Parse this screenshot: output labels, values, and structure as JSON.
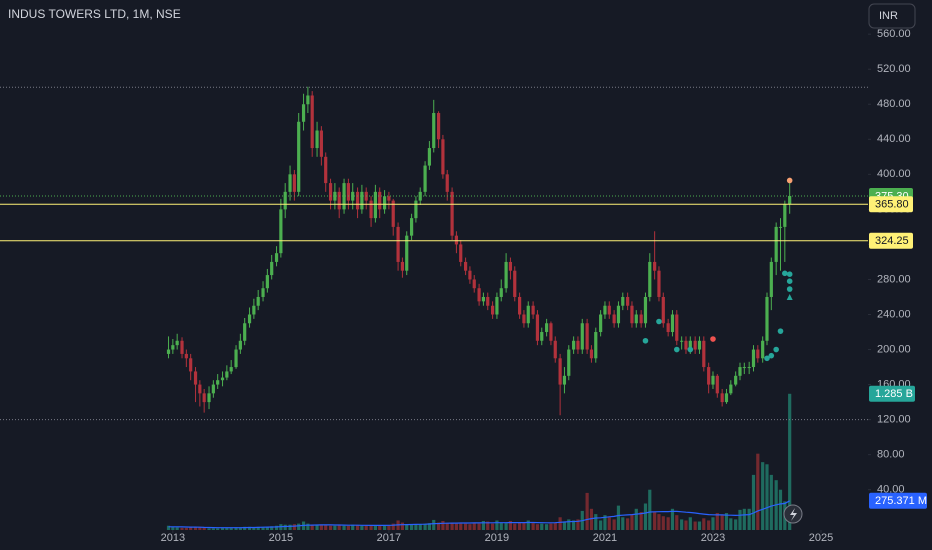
{
  "chart_data": {
    "type": "candlestick",
    "title": "INDUS TOWERS LTD, 1M, NSE",
    "currency_button": "INR",
    "up_color": "#4caf50",
    "down_color": "#b2323c",
    "volume_up_color": "#1f6b5f",
    "volume_down_color": "#74292f",
    "volume_ma_color": "#2962ff",
    "level_color": "#fff176",
    "x": [
      2012.92,
      2013,
      2013.08,
      2013.17,
      2013.25,
      2013.33,
      2013.42,
      2013.5,
      2013.58,
      2013.67,
      2013.75,
      2013.83,
      2013.92,
      2014,
      2014.08,
      2014.17,
      2014.25,
      2014.33,
      2014.42,
      2014.5,
      2014.58,
      2014.67,
      2014.75,
      2014.83,
      2014.92,
      2015,
      2015.08,
      2015.17,
      2015.25,
      2015.33,
      2015.42,
      2015.5,
      2015.58,
      2015.67,
      2015.75,
      2015.83,
      2015.92,
      2016,
      2016.08,
      2016.17,
      2016.25,
      2016.33,
      2016.42,
      2016.5,
      2016.58,
      2016.67,
      2016.75,
      2016.83,
      2016.92,
      2017,
      2017.08,
      2017.17,
      2017.25,
      2017.33,
      2017.42,
      2017.5,
      2017.58,
      2017.67,
      2017.75,
      2017.83,
      2017.92,
      2018,
      2018.08,
      2018.17,
      2018.25,
      2018.33,
      2018.42,
      2018.5,
      2018.58,
      2018.67,
      2018.75,
      2018.83,
      2018.92,
      2019,
      2019.08,
      2019.17,
      2019.25,
      2019.33,
      2019.42,
      2019.5,
      2019.58,
      2019.67,
      2019.75,
      2019.83,
      2019.92,
      2020,
      2020.08,
      2020.17,
      2020.25,
      2020.33,
      2020.42,
      2020.5,
      2020.58,
      2020.67,
      2020.75,
      2020.83,
      2020.92,
      2021,
      2021.08,
      2021.17,
      2021.25,
      2021.33,
      2021.42,
      2021.5,
      2021.58,
      2021.67,
      2021.75,
      2021.83,
      2021.92,
      2022,
      2022.08,
      2022.17,
      2022.25,
      2022.33,
      2022.42,
      2022.5,
      2022.58,
      2022.67,
      2022.75,
      2022.83,
      2022.92,
      2023,
      2023.08,
      2023.17,
      2023.25,
      2023.33,
      2023.42,
      2023.5,
      2023.58,
      2023.67,
      2023.75,
      2023.83,
      2023.92,
      2024,
      2024.08,
      2024.17,
      2024.25,
      2024.33,
      2024.42
    ],
    "open": [
      195,
      200,
      205,
      210,
      195,
      190,
      175,
      160,
      150,
      140,
      150,
      160,
      165,
      168,
      175,
      180,
      200,
      210,
      230,
      240,
      250,
      260,
      270,
      285,
      300,
      310,
      360,
      380,
      400,
      380,
      460,
      480,
      490,
      430,
      450,
      420,
      390,
      370,
      380,
      360,
      390,
      370,
      380,
      360,
      380,
      370,
      350,
      380,
      360,
      375,
      370,
      340,
      300,
      290,
      330,
      350,
      370,
      380,
      410,
      430,
      470,
      440,
      400,
      380,
      330,
      320,
      300,
      290,
      280,
      270,
      255,
      260,
      250,
      240,
      260,
      270,
      300,
      290,
      260,
      240,
      230,
      250,
      240,
      210,
      220,
      230,
      210,
      190,
      160,
      170,
      200,
      210,
      200,
      230,
      200,
      190,
      220,
      240,
      250,
      240,
      230,
      250,
      260,
      250,
      230,
      240,
      230,
      260,
      300,
      290,
      260,
      230,
      220,
      240,
      210,
      210,
      200,
      210,
      200,
      210,
      180,
      160,
      170,
      150,
      140,
      150,
      160,
      170,
      180,
      180,
      180,
      200,
      190,
      210,
      260,
      300,
      340,
      340,
      366
    ],
    "high": [
      215,
      212,
      218,
      214,
      200,
      195,
      180,
      165,
      155,
      158,
      165,
      172,
      175,
      182,
      188,
      205,
      218,
      236,
      248,
      258,
      268,
      278,
      292,
      308,
      318,
      372,
      390,
      410,
      405,
      470,
      492,
      500,
      495,
      460,
      455,
      425,
      395,
      390,
      385,
      395,
      395,
      390,
      385,
      388,
      385,
      375,
      388,
      385,
      382,
      380,
      372,
      345,
      305,
      335,
      355,
      375,
      385,
      415,
      438,
      485,
      472,
      445,
      405,
      385,
      335,
      325,
      305,
      295,
      285,
      275,
      265,
      265,
      255,
      265,
      280,
      310,
      305,
      295,
      265,
      245,
      255,
      255,
      245,
      225,
      235,
      232,
      215,
      195,
      180,
      205,
      215,
      215,
      235,
      235,
      205,
      225,
      245,
      255,
      255,
      245,
      255,
      265,
      265,
      255,
      245,
      245,
      265,
      310,
      335,
      295,
      265,
      235,
      245,
      245,
      215,
      215,
      215,
      215,
      215,
      215,
      185,
      175,
      172,
      155,
      155,
      165,
      175,
      185,
      185,
      186,
      205,
      205,
      215,
      265,
      305,
      345,
      350,
      370,
      392
    ],
    "low": [
      190,
      195,
      200,
      190,
      180,
      165,
      140,
      135,
      128,
      132,
      145,
      155,
      158,
      165,
      172,
      178,
      195,
      205,
      225,
      235,
      245,
      255,
      265,
      280,
      295,
      305,
      350,
      370,
      370,
      375,
      450,
      470,
      420,
      420,
      410,
      380,
      360,
      360,
      350,
      355,
      360,
      360,
      350,
      355,
      360,
      340,
      345,
      350,
      355,
      360,
      330,
      290,
      282,
      285,
      325,
      345,
      365,
      375,
      405,
      425,
      430,
      395,
      370,
      325,
      310,
      295,
      285,
      275,
      265,
      250,
      250,
      245,
      235,
      235,
      255,
      265,
      280,
      255,
      235,
      225,
      225,
      235,
      205,
      205,
      215,
      205,
      185,
      125,
      150,
      165,
      195,
      195,
      195,
      195,
      185,
      185,
      215,
      235,
      235,
      225,
      225,
      245,
      245,
      225,
      225,
      225,
      225,
      255,
      280,
      255,
      225,
      215,
      215,
      205,
      200,
      195,
      195,
      195,
      195,
      175,
      150,
      155,
      145,
      135,
      138,
      148,
      158,
      165,
      172,
      172,
      175,
      185,
      185,
      205,
      245,
      285,
      290,
      300,
      355
    ],
    "close": [
      200,
      205,
      210,
      195,
      190,
      175,
      160,
      150,
      140,
      150,
      160,
      165,
      168,
      175,
      180,
      200,
      210,
      230,
      240,
      250,
      260,
      270,
      285,
      300,
      310,
      360,
      380,
      400,
      380,
      460,
      480,
      490,
      430,
      450,
      420,
      390,
      370,
      380,
      360,
      390,
      370,
      380,
      360,
      380,
      370,
      350,
      380,
      360,
      375,
      370,
      340,
      300,
      290,
      330,
      350,
      370,
      380,
      410,
      430,
      470,
      440,
      400,
      380,
      330,
      320,
      300,
      290,
      280,
      270,
      255,
      260,
      250,
      240,
      260,
      270,
      300,
      290,
      260,
      240,
      230,
      250,
      240,
      210,
      220,
      230,
      210,
      190,
      160,
      170,
      200,
      210,
      200,
      230,
      200,
      190,
      220,
      240,
      250,
      240,
      230,
      250,
      260,
      250,
      230,
      240,
      230,
      260,
      300,
      290,
      260,
      230,
      220,
      240,
      210,
      210,
      200,
      210,
      200,
      210,
      180,
      160,
      170,
      150,
      140,
      150,
      160,
      170,
      180,
      180,
      180,
      200,
      190,
      210,
      260,
      300,
      340,
      340,
      366,
      375.3
    ],
    "volume": [
      40000000.0,
      30000000.0,
      25000000.0,
      20000000.0,
      20000000.0,
      25000000.0,
      25000000.0,
      30000000.0,
      20000000.0,
      15000000.0,
      15000000.0,
      15000000.0,
      20000000.0,
      20000000.0,
      20000000.0,
      25000000.0,
      20000000.0,
      30000000.0,
      30000000.0,
      25000000.0,
      30000000.0,
      25000000.0,
      30000000.0,
      35000000.0,
      40000000.0,
      55000000.0,
      50000000.0,
      50000000.0,
      55000000.0,
      60000000.0,
      80000000.0,
      60000000.0,
      45000000.0,
      50000000.0,
      45000000.0,
      45000000.0,
      40000000.0,
      40000000.0,
      45000000.0,
      40000000.0,
      40000000.0,
      50000000.0,
      45000000.0,
      40000000.0,
      45000000.0,
      40000000.0,
      45000000.0,
      45000000.0,
      40000000.0,
      45000000.0,
      60000000.0,
      90000000.0,
      70000000.0,
      55000000.0,
      55000000.0,
      50000000.0,
      55000000.0,
      60000000.0,
      65000000.0,
      95000000.0,
      70000000.0,
      85000000.0,
      65000000.0,
      70000000.0,
      60000000.0,
      60000000.0,
      60000000.0,
      55000000.0,
      70000000.0,
      60000000.0,
      85000000.0,
      80000000.0,
      60000000.0,
      90000000.0,
      70000000.0,
      65000000.0,
      85000000.0,
      60000000.0,
      70000000.0,
      75000000.0,
      90000000.0,
      65000000.0,
      55000000.0,
      60000000.0,
      55000000.0,
      60000000.0,
      70000000.0,
      120000000.0,
      80000000.0,
      100000000.0,
      90000000.0,
      100000000.0,
      180000000.0,
      350000000.0,
      200000000.0,
      150000000.0,
      90000000.0,
      140000000.0,
      120000000.0,
      100000000.0,
      230000000.0,
      120000000.0,
      110000000.0,
      150000000.0,
      200000000.0,
      170000000.0,
      250000000.0,
      380000000.0,
      170000000.0,
      150000000.0,
      130000000.0,
      120000000.0,
      200000000.0,
      140000000.0,
      100000000.0,
      90000000.0,
      120000000.0,
      80000000.0,
      80000000.0,
      110000000.0,
      90000000.0,
      120000000.0,
      160000000.0,
      140000000.0,
      160000000.0,
      110000000.0,
      100000000.0,
      190000000.0,
      200000000.0,
      200000000.0,
      520000000.0,
      720000000.0,
      640000000.0,
      620000000.0,
      520000000.0,
      470000000.0,
      380000000.0,
      270000000.0,
      1285000000.0
    ],
    "volume_ma": [
      30000000.0,
      30000000.0,
      30000000.0,
      29000000.0,
      28000000.0,
      27000000.0,
      27000000.0,
      26000000.0,
      25000000.0,
      24000000.0,
      23000000.0,
      22000000.0,
      22000000.0,
      22000000.0,
      22000000.0,
      22000000.0,
      22000000.0,
      23000000.0,
      24000000.0,
      24000000.0,
      25000000.0,
      26000000.0,
      27000000.0,
      28000000.0,
      29000000.0,
      31000000.0,
      33000000.0,
      35000000.0,
      37000000.0,
      40000000.0,
      43000000.0,
      45000000.0,
      46000000.0,
      47000000.0,
      48000000.0,
      48000000.0,
      48000000.0,
      47000000.0,
      47000000.0,
      46000000.0,
      45000000.0,
      45000000.0,
      45000000.0,
      44000000.0,
      44000000.0,
      43000000.0,
      43000000.0,
      43000000.0,
      43000000.0,
      44000000.0,
      45000000.0,
      48000000.0,
      50000000.0,
      51000000.0,
      52000000.0,
      53000000.0,
      54000000.0,
      55000000.0,
      57000000.0,
      60000000.0,
      61000000.0,
      63000000.0,
      64000000.0,
      65000000.0,
      65000000.0,
      66000000.0,
      66000000.0,
      66000000.0,
      67000000.0,
      67000000.0,
      68000000.0,
      68000000.0,
      68000000.0,
      69000000.0,
      69000000.0,
      69000000.0,
      70000000.0,
      70000000.0,
      70000000.0,
      70000000.0,
      71000000.0,
      71000000.0,
      70000000.0,
      69000000.0,
      68000000.0,
      68000000.0,
      69000000.0,
      73000000.0,
      75000000.0,
      78000000.0,
      80000000.0,
      82000000.0,
      88000000.0,
      100000000.0,
      108000000.0,
      113000000.0,
      115000000.0,
      120000000.0,
      125000000.0,
      128000000.0,
      137000000.0,
      140000000.0,
      142000000.0,
      145000000.0,
      150000000.0,
      155000000.0,
      160000000.0,
      170000000.0,
      172000000.0,
      173000000.0,
      174000000.0,
      174000000.0,
      176000000.0,
      175000000.0,
      172000000.0,
      168000000.0,
      165000000.0,
      160000000.0,
      155000000.0,
      150000000.0,
      145000000.0,
      143000000.0,
      142000000.0,
      142000000.0,
      141000000.0,
      140000000.0,
      138000000.0,
      140000000.0,
      142000000.0,
      145000000.0,
      160000000.0,
      180000000.0,
      195000000.0,
      210000000.0,
      225000000.0,
      238000000.0,
      246000000.0,
      250000000.0,
      275371000.0
    ],
    "xlim": [
      2009.8,
      2025.87
    ],
    "xticks": [
      2013,
      2015,
      2017,
      2019,
      2021,
      2023,
      2025
    ],
    "ylim": [
      -6,
      599
    ],
    "yticks": [
      {
        "value": 40,
        "label": "40.00"
      },
      {
        "value": 80,
        "label": "80.00"
      },
      {
        "value": 120,
        "label": "120.00"
      },
      {
        "value": 160,
        "label": "160.00"
      },
      {
        "value": 200,
        "label": "200.00"
      },
      {
        "value": 240,
        "label": "240.00"
      },
      {
        "value": 280,
        "label": "280.00"
      },
      {
        "value": 320,
        "label": "320.00"
      },
      {
        "value": 360,
        "label": "360.00"
      },
      {
        "value": 400,
        "label": "400.00"
      },
      {
        "value": 440,
        "label": "440.00"
      },
      {
        "value": 480,
        "label": "480.00"
      },
      {
        "value": 520,
        "label": "520.00"
      },
      {
        "value": 560,
        "label": "560.00"
      }
    ],
    "volume_lim": [
      0,
      5000000000.0
    ],
    "reference_lines": [
      499.4,
      120
    ],
    "levels": [
      {
        "value": 365.8,
        "label": "365.80"
      },
      {
        "value": 324.25,
        "label": "324.25"
      }
    ],
    "price_tag": {
      "value": 375.3,
      "label": "375.30"
    },
    "volume_tag": {
      "value": 1285000000.0,
      "label": "1.285 B"
    },
    "volume_ma_tag": {
      "value": 275371000.0,
      "label": "275.371 M"
    },
    "signals": [
      {
        "x": 2021.75,
        "value": 210,
        "color": "#26a69a"
      },
      {
        "x": 2022.0,
        "value": 232,
        "color": "#26a69a"
      },
      {
        "x": 2022.33,
        "value": 200,
        "color": "#26a69a"
      },
      {
        "x": 2022.58,
        "value": 200,
        "color": "#26a69a"
      },
      {
        "x": 2023.0,
        "value": 212,
        "color": "#ef5350"
      },
      {
        "x": 2024.0,
        "value": 190,
        "color": "#26a69a"
      },
      {
        "x": 2024.08,
        "value": 193,
        "color": "#26a69a"
      },
      {
        "x": 2024.17,
        "value": 200,
        "color": "#26a69a"
      },
      {
        "x": 2024.25,
        "value": 221,
        "color": "#26a69a"
      },
      {
        "x": 2024.33,
        "value": 287,
        "color": "#26a69a"
      },
      {
        "x": 2024.42,
        "value": 286,
        "color": "#26a69a"
      },
      {
        "x": 2024.42,
        "value": 278,
        "color": "#26a69a"
      },
      {
        "x": 2024.42,
        "value": 269,
        "color": "#26a69a"
      },
      {
        "x": 2024.42,
        "value": 260,
        "color": "#26a69a",
        "shape": "triangle"
      },
      {
        "x": 2024.42,
        "value": 393,
        "color": "#f7a072"
      }
    ]
  }
}
